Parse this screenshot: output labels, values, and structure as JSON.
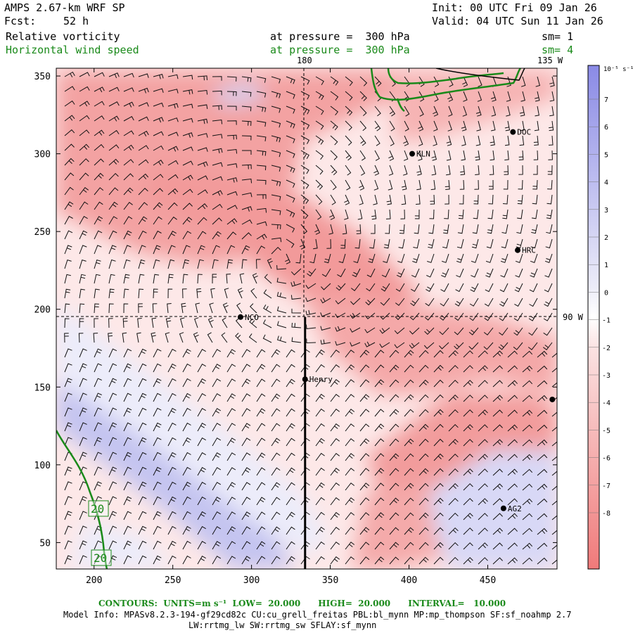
{
  "header": {
    "title": "AMPS 2.67-km WRF SP",
    "forecast_label": "Fcst:",
    "forecast_value": "52 h",
    "init": "Init: 00 UTC Fri 09 Jan 26",
    "valid": "Valid: 04 UTC Sun 11 Jan 26",
    "field1_name": "Relative vorticity",
    "field1_level": "at pressure =  300 hPa",
    "field1_smooth": "sm= 1",
    "field2_name": "Horizontal wind speed",
    "field2_level": "at pressure =  300 hPa",
    "field2_smooth": "sm= 4"
  },
  "map_labels": {
    "lon_top": "180",
    "lon_right_top": "135 W",
    "lat_right": "90 W",
    "contour_label": "20"
  },
  "stations": [
    {
      "name": "DOC",
      "x": 466,
      "y": 314
    },
    {
      "name": "KLN",
      "x": 402,
      "y": 300
    },
    {
      "name": "HRC",
      "x": 469,
      "y": 238
    },
    {
      "name": "NCO",
      "x": 293,
      "y": 195
    },
    {
      "name": "Henry",
      "x": 334,
      "y": 155
    },
    {
      "name": "AG2",
      "x": 460,
      "y": 72
    },
    {
      "name": "",
      "x": 491,
      "y": 142
    }
  ],
  "colorbar": {
    "unit": "10⁻⁵ s⁻¹",
    "ticks": [
      "7",
      "6",
      "5",
      "4",
      "3",
      "2",
      "1",
      "0",
      "-1",
      "-2",
      "-3",
      "-4",
      "-5",
      "-6",
      "-7",
      "-8"
    ]
  },
  "footer": {
    "contours": "CONTOURS:  UNITS=m s⁻¹  LOW=  20.000      HIGH=  20.000      INTERVAL=   10.000",
    "model_info_1": "Model Info: MPASv8.2.3-194-gf29cd82c CU:cu_grell_freitas PBL:bl_mynn MP:mp_thompson SF:sf_noahmp 2.7",
    "model_info_2": "LW:rrtmg_lw SW:rrtmg_sw SFLAY:sf_mynn"
  },
  "chart_data": {
    "type": "heatmap",
    "xlim": [
      176,
      494
    ],
    "ylim": [
      33,
      355
    ],
    "x_ticks": [
      "200",
      "250",
      "300",
      "350",
      "400",
      "450"
    ],
    "y_ticks": [
      "50",
      "100",
      "150",
      "200",
      "250",
      "300",
      "350"
    ],
    "cross_section": {
      "x": 334,
      "y_from": 33,
      "y_to": 195
    },
    "vorticity_levels": [
      7,
      6,
      5,
      4,
      3,
      2,
      1,
      0,
      -1,
      -2,
      -3,
      -4,
      -5,
      -6,
      -7,
      -8
    ],
    "wind_speed_contour": 20
  }
}
